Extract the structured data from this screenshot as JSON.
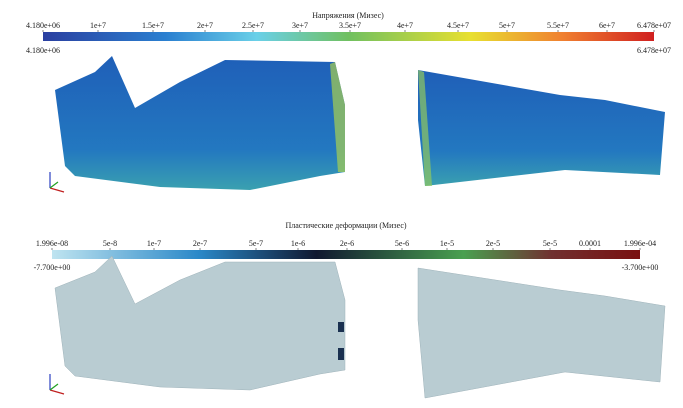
{
  "panels": [
    {
      "title": "Напряжения (Мизес)",
      "ticks": [
        "4.180e+06",
        "1e+7",
        "1.5e+7",
        "2e+7",
        "2.5e+7",
        "3e+7",
        "3.5e+7",
        "4e+7",
        "4.5e+7",
        "5e+7",
        "5.5e+7",
        "6e+7",
        "6.478e+07"
      ],
      "range_min": "4.180e+06",
      "range_max": "6.478e+07"
    },
    {
      "title": "Пластические деформации (Мизес)",
      "ticks": [
        "1.996e-08",
        "5e-8",
        "1e-7",
        "2e-7",
        "5e-7",
        "1e-6",
        "2e-6",
        "5e-6",
        "1e-5",
        "2e-5",
        "5e-5",
        "0.0001",
        "1.996e-04"
      ],
      "range_min": "-7.700e+00",
      "range_max": "-3.700e+00"
    }
  ]
}
